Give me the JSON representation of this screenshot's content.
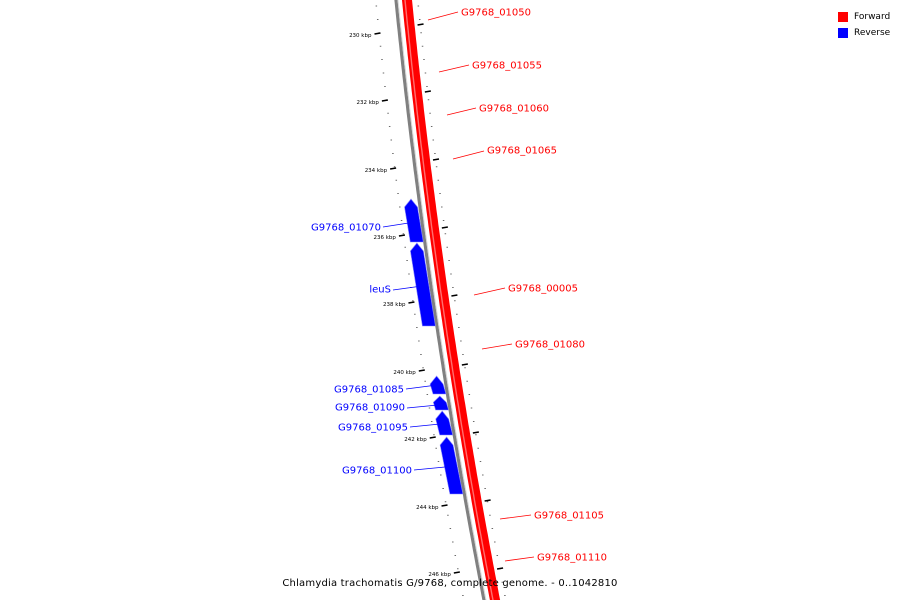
{
  "caption": "Chlamydia trachomatis G/9768, complete genome. - 0..1042810",
  "legend": [
    {
      "label": "Forward",
      "color": "#ff0000"
    },
    {
      "label": "Reverse",
      "color": "#0000ff"
    }
  ],
  "colors": {
    "forward": "#ff0000",
    "reverse": "#0000ff",
    "backbone": "#808080"
  },
  "ticks": [
    {
      "label": "230 kbp",
      "kbp": 230
    },
    {
      "label": "232 kbp",
      "kbp": 232
    },
    {
      "label": "234 kbp",
      "kbp": 234
    },
    {
      "label": "236 kbp",
      "kbp": 236
    },
    {
      "label": "238 kbp",
      "kbp": 238
    },
    {
      "label": "240 kbp",
      "kbp": 240
    },
    {
      "label": "242 kbp",
      "kbp": 242
    },
    {
      "label": "244 kbp",
      "kbp": 244
    },
    {
      "label": "246 kbp",
      "kbp": 246
    }
  ],
  "features": [
    {
      "label": "G9768_01050",
      "strand": "forward"
    },
    {
      "label": "G9768_01055",
      "strand": "forward"
    },
    {
      "label": "G9768_01060",
      "strand": "forward"
    },
    {
      "label": "G9768_01065",
      "strand": "forward"
    },
    {
      "label": "G9768_01070",
      "strand": "reverse"
    },
    {
      "label": "leuS",
      "strand": "reverse"
    },
    {
      "label": "G9768_00005",
      "strand": "forward"
    },
    {
      "label": "G9768_01080",
      "strand": "forward"
    },
    {
      "label": "G9768_01085",
      "strand": "reverse"
    },
    {
      "label": "G9768_01090",
      "strand": "reverse"
    },
    {
      "label": "G9768_01095",
      "strand": "reverse"
    },
    {
      "label": "G9768_01100",
      "strand": "reverse"
    },
    {
      "label": "G9768_01105",
      "strand": "forward"
    },
    {
      "label": "G9768_01110",
      "strand": "forward"
    }
  ]
}
